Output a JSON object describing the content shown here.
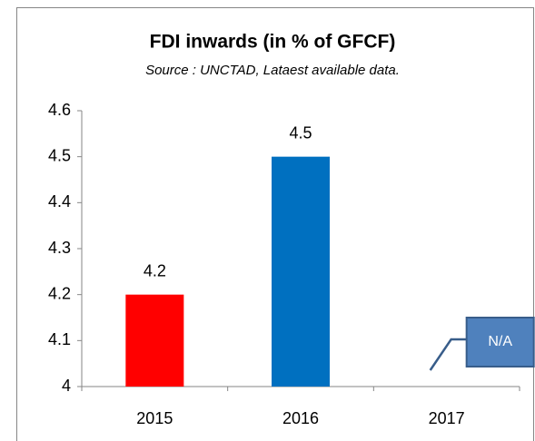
{
  "chart_data": {
    "type": "bar",
    "title": "FDI inwards (in % of GFCF)",
    "subtitle": "Source : UNCTAD, Lataest available data.",
    "categories": [
      "2015",
      "2016",
      "2017"
    ],
    "values": [
      4.2,
      4.5,
      null
    ],
    "colors": [
      "#ff0000",
      "#0070c0",
      null
    ],
    "ylim": [
      4,
      4.6
    ],
    "yticks": [
      4,
      4.1,
      4.2,
      4.3,
      4.4,
      4.5,
      4.6
    ],
    "grid": false,
    "annotations": [
      {
        "text": "N/A",
        "category": 2
      }
    ]
  }
}
